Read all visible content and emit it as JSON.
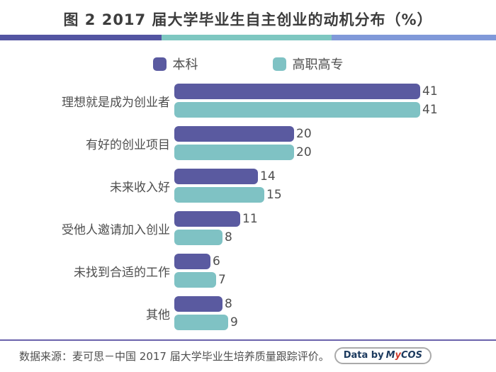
{
  "title": "图 2  2017 届大学毕业生自主创业的动机分布（%）",
  "divider_colors": [
    "#5355a2",
    "#7ec7c1",
    "#8099d9"
  ],
  "legend": [
    {
      "label": "本科",
      "color": "#5a5aa0"
    },
    {
      "label": "高职高专",
      "color": "#7fc2c4"
    }
  ],
  "chart_data": {
    "type": "bar",
    "orientation": "horizontal",
    "title": "图 2  2017 届大学毕业生自主创业的动机分布（%）",
    "unit": "%",
    "xlim": [
      0,
      41
    ],
    "grid": false,
    "legend_position": "top",
    "value_labels": true,
    "categories": [
      "理想就是成为创业者",
      "有好的创业项目",
      "未来收入好",
      "受他人邀请加入创业",
      "未找到合适的工作",
      "其他"
    ],
    "series": [
      {
        "name": "本科",
        "key": "undergraduate",
        "color": "#5a5aa0",
        "values": [
          41,
          20,
          14,
          11,
          6,
          8
        ]
      },
      {
        "name": "高职高专",
        "key": "vocational",
        "color": "#7fc2c4",
        "values": [
          41,
          20,
          15,
          8,
          7,
          9
        ]
      }
    ]
  },
  "theme": {
    "accent_rule": "#6a62ab"
  },
  "footer": {
    "source": "数据来源：麦可思－中国 2017 届大学毕业生培养质量跟踪评价。",
    "badge": {
      "prefix": "Data by",
      "brand_m": "M",
      "brand_y": "y",
      "brand_cos": "COS"
    }
  }
}
